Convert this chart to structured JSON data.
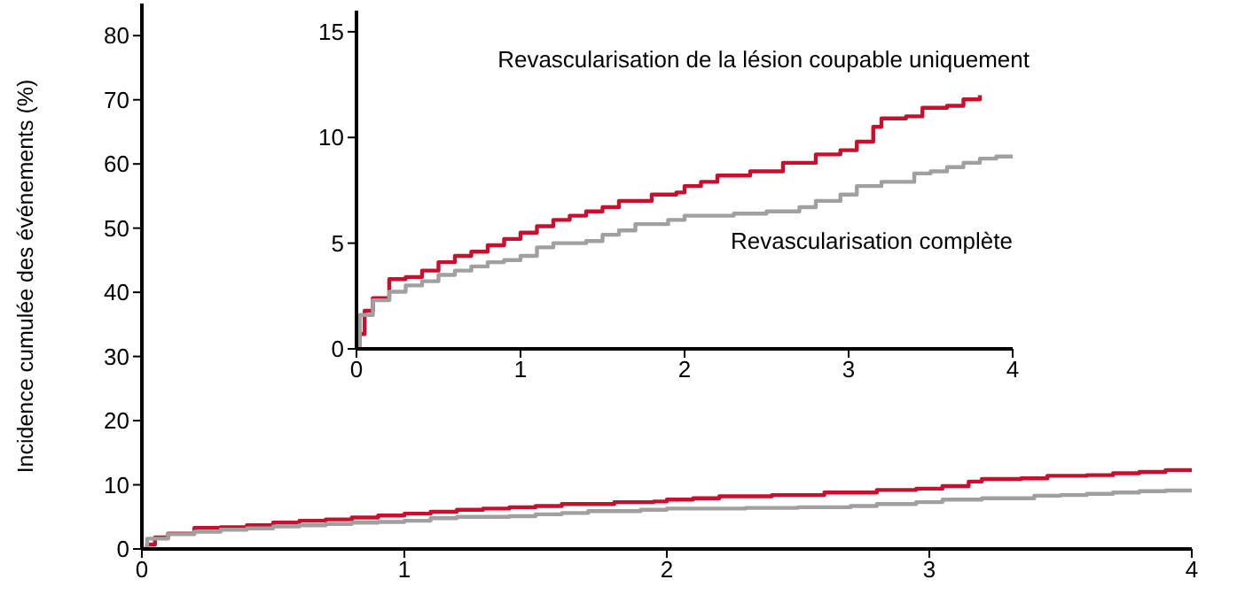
{
  "chart_data": [
    {
      "type": "step",
      "ylabel": "Incidence cumulée des événements (%)",
      "xlim": [
        0,
        4
      ],
      "xticks": [
        0,
        1,
        2,
        3,
        4
      ],
      "ylim": [
        0,
        85
      ],
      "yticks": [
        0,
        10,
        20,
        30,
        40,
        50,
        60,
        70,
        80
      ],
      "grid": false,
      "legend": false,
      "marker": "none",
      "line_style": "solid",
      "series": [
        {
          "color": "#c8102e",
          "x": [
            0,
            0.02,
            0.05,
            0.1,
            0.2,
            0.3,
            0.4,
            0.5,
            0.6,
            0.7,
            0.8,
            0.9,
            1.0,
            1.1,
            1.2,
            1.3,
            1.4,
            1.5,
            1.6,
            1.8,
            1.95,
            2.0,
            2.1,
            2.2,
            2.4,
            2.6,
            2.8,
            2.95,
            3.05,
            3.15,
            3.2,
            3.35,
            3.45,
            3.6,
            3.7,
            3.8,
            3.9,
            4.0
          ],
          "values": [
            0,
            0.7,
            1.8,
            2.4,
            3.3,
            3.4,
            3.7,
            4.1,
            4.4,
            4.6,
            4.9,
            5.2,
            5.5,
            5.8,
            6.1,
            6.3,
            6.5,
            6.7,
            7.0,
            7.3,
            7.4,
            7.7,
            7.9,
            8.2,
            8.4,
            8.8,
            9.2,
            9.4,
            9.8,
            10.5,
            10.9,
            11.0,
            11.4,
            11.5,
            11.8,
            12.0,
            12.3,
            12.6
          ]
        },
        {
          "color": "#a0a0a0",
          "x": [
            0,
            0.02,
            0.1,
            0.2,
            0.3,
            0.4,
            0.5,
            0.6,
            0.7,
            0.8,
            0.9,
            1.0,
            1.1,
            1.2,
            1.4,
            1.5,
            1.6,
            1.7,
            1.9,
            2.0,
            2.3,
            2.5,
            2.7,
            2.8,
            2.95,
            3.05,
            3.2,
            3.4,
            3.5,
            3.6,
            3.7,
            3.8,
            3.9,
            4.0
          ],
          "values": [
            0,
            1.6,
            2.3,
            2.7,
            3.0,
            3.2,
            3.5,
            3.7,
            3.9,
            4.1,
            4.2,
            4.4,
            4.8,
            5.0,
            5.1,
            5.4,
            5.6,
            5.9,
            6.1,
            6.3,
            6.4,
            6.5,
            6.7,
            7.0,
            7.3,
            7.7,
            7.9,
            8.3,
            8.4,
            8.6,
            8.8,
            9.0,
            9.1,
            9.1
          ]
        }
      ]
    },
    {
      "type": "step",
      "xlim": [
        0,
        4
      ],
      "xticks": [
        0,
        1,
        2,
        3,
        4
      ],
      "ylim": [
        0,
        16
      ],
      "yticks": [
        0,
        5,
        10,
        15
      ],
      "grid": false,
      "legend": false,
      "marker": "none",
      "line_style": "solid",
      "series": [
        {
          "name": "Revascularisation de la lésion coupable uniquement",
          "color": "#c8102e",
          "x": [
            0,
            0.02,
            0.05,
            0.1,
            0.2,
            0.3,
            0.4,
            0.5,
            0.6,
            0.7,
            0.8,
            0.9,
            1.0,
            1.1,
            1.2,
            1.3,
            1.4,
            1.5,
            1.6,
            1.8,
            1.95,
            2.0,
            2.1,
            2.2,
            2.4,
            2.6,
            2.8,
            2.95,
            3.05,
            3.15,
            3.2,
            3.35,
            3.45,
            3.6,
            3.7,
            3.8
          ],
          "values": [
            0,
            0.7,
            1.8,
            2.4,
            3.3,
            3.4,
            3.7,
            4.1,
            4.4,
            4.6,
            4.9,
            5.2,
            5.5,
            5.8,
            6.1,
            6.3,
            6.5,
            6.7,
            7.0,
            7.3,
            7.4,
            7.7,
            7.9,
            8.2,
            8.4,
            8.8,
            9.2,
            9.4,
            9.8,
            10.5,
            10.9,
            11.0,
            11.4,
            11.5,
            11.8,
            12.0
          ]
        },
        {
          "name": "Revascularisation complète",
          "color": "#a0a0a0",
          "x": [
            0,
            0.02,
            0.1,
            0.2,
            0.3,
            0.4,
            0.5,
            0.6,
            0.7,
            0.8,
            0.9,
            1.0,
            1.1,
            1.2,
            1.4,
            1.5,
            1.6,
            1.7,
            1.9,
            2.0,
            2.3,
            2.5,
            2.7,
            2.8,
            2.95,
            3.05,
            3.2,
            3.4,
            3.5,
            3.6,
            3.7,
            3.8,
            3.9,
            4.0
          ],
          "values": [
            0,
            1.6,
            2.3,
            2.7,
            3.0,
            3.2,
            3.5,
            3.7,
            3.9,
            4.1,
            4.2,
            4.4,
            4.8,
            5.0,
            5.1,
            5.4,
            5.6,
            5.9,
            6.1,
            6.3,
            6.4,
            6.5,
            6.7,
            7.0,
            7.3,
            7.7,
            7.9,
            8.3,
            8.4,
            8.6,
            8.8,
            9.0,
            9.1,
            9.1
          ]
        }
      ]
    }
  ]
}
